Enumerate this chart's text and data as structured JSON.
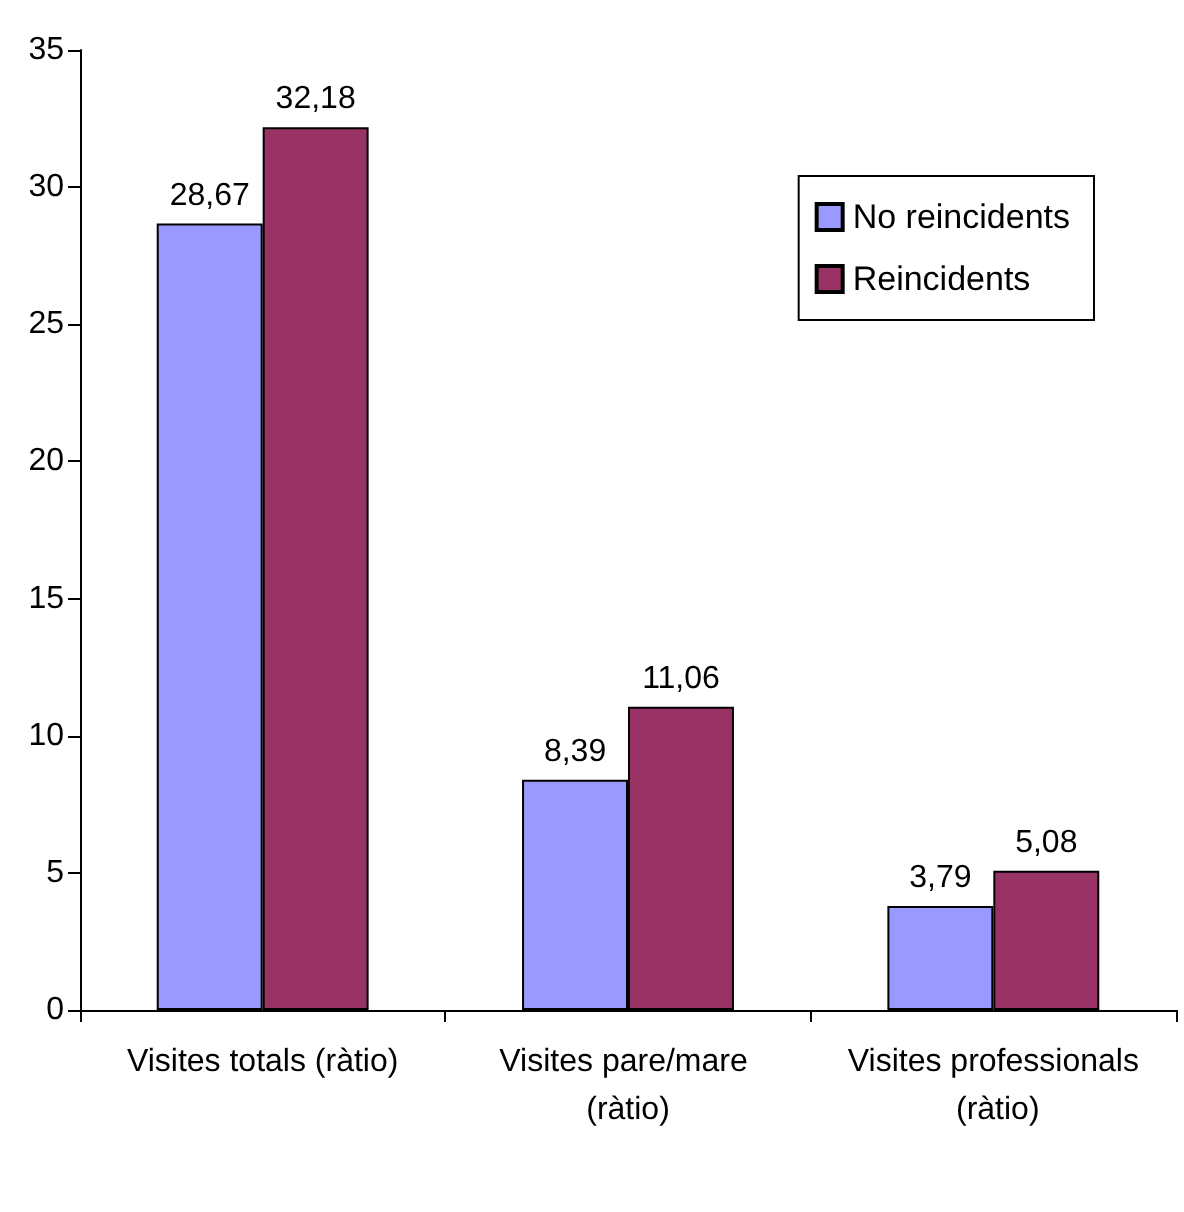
{
  "chart_data": {
    "type": "bar",
    "categories": [
      "Visites totals (ràtio)",
      "Visites pare/mare (ràtio)",
      "Visites professionals (ràtio)"
    ],
    "series": [
      {
        "name": "No reincidents",
        "color": "#9999ff",
        "values": [
          28.67,
          8.39,
          3.79
        ],
        "value_labels": [
          "28,67",
          "8,39",
          "3,79"
        ]
      },
      {
        "name": "Reincidents",
        "color": "#993366",
        "values": [
          32.18,
          11.06,
          5.08
        ],
        "value_labels": [
          "32,18",
          "11,06",
          "5,08"
        ]
      }
    ],
    "ylim": [
      0,
      35
    ],
    "yticks": [
      0,
      5,
      10,
      15,
      20,
      25,
      30,
      35
    ],
    "grid": false,
    "legend": "top right"
  }
}
